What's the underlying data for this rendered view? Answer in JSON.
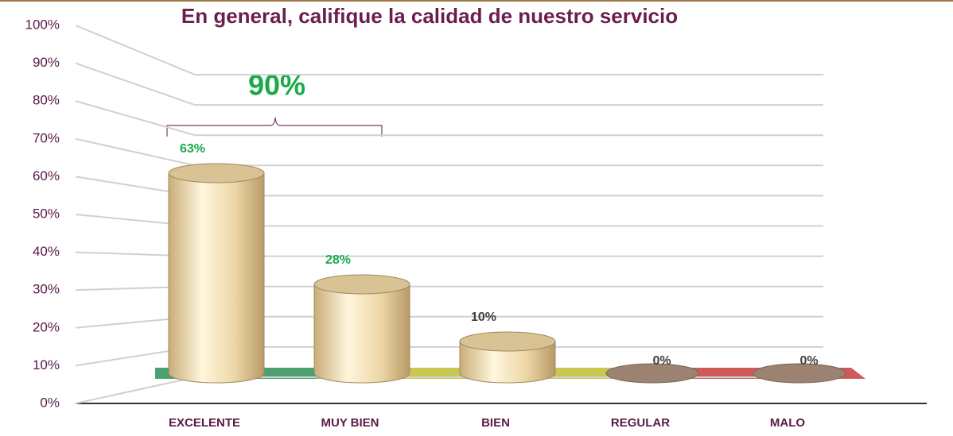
{
  "chart_data": {
    "type": "bar3d",
    "title": "En general, califique la calidad de nuestro servicio",
    "annotation": "90%",
    "categories": [
      "EXCELENTE",
      "MUY BIEN",
      "BIEN",
      "REGULAR",
      "MALO"
    ],
    "values": [
      63,
      28,
      10,
      0,
      0
    ],
    "value_labels": [
      "63%",
      "28%",
      "10%",
      "0%",
      "0%"
    ],
    "value_label_colors": [
      "#1aaa4a",
      "#1aaa4a",
      "#404040",
      "#404040",
      "#404040"
    ],
    "color": "#f0ddb0",
    "ylim": [
      0,
      100
    ],
    "yticks": [
      {
        "value": 0,
        "label": "0%"
      },
      {
        "value": 10,
        "label": "10%"
      },
      {
        "value": 20,
        "label": "20%"
      },
      {
        "value": 30,
        "label": "30%"
      },
      {
        "value": 40,
        "label": "40%"
      },
      {
        "value": 50,
        "label": "50%"
      },
      {
        "value": 60,
        "label": "60%"
      },
      {
        "value": 70,
        "label": "70%"
      },
      {
        "value": 80,
        "label": "80%"
      },
      {
        "value": 90,
        "label": "90%"
      },
      {
        "value": 100,
        "label": "100%"
      }
    ],
    "grid": true
  }
}
